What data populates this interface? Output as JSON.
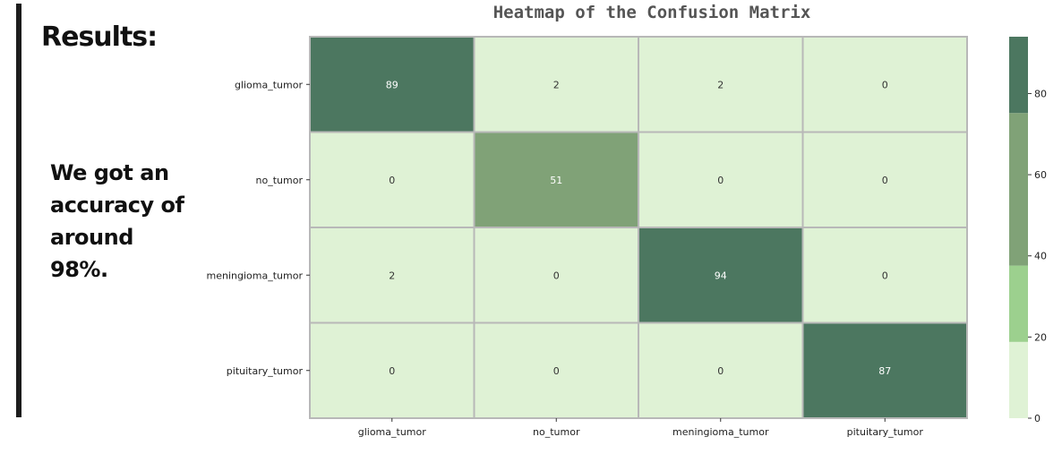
{
  "slide": {
    "heading": "Results:",
    "body": "We got an accuracy of around 98%."
  },
  "colors": {
    "scale": [
      "#dff2d5",
      "#9cd08e",
      "#80a277",
      "#4c7760"
    ],
    "grid": "#b8b8b8",
    "text_light": "#ffffff",
    "text_dark": "#333333"
  },
  "chart_data": {
    "type": "heatmap",
    "title": "Heatmap of the Confusion Matrix",
    "xlabel": "",
    "ylabel": "",
    "row_labels": [
      "glioma_tumor",
      "no_tumor",
      "meningioma_tumor",
      "pituitary_tumor"
    ],
    "col_labels": [
      "glioma_tumor",
      "no_tumor",
      "meningioma_tumor",
      "pituitary_tumor"
    ],
    "values": [
      [
        89,
        2,
        2,
        0
      ],
      [
        0,
        51,
        0,
        0
      ],
      [
        2,
        0,
        94,
        0
      ],
      [
        0,
        0,
        0,
        87
      ]
    ],
    "colorbar": {
      "min": 0,
      "max": 94,
      "ticks": [
        0,
        20,
        40,
        60,
        80
      ],
      "bands": [
        {
          "from": 0,
          "to": 18.8,
          "color": "#dff2d5"
        },
        {
          "from": 18.8,
          "to": 37.6,
          "color": "#9cd08e"
        },
        {
          "from": 37.6,
          "to": 75.2,
          "color": "#80a277"
        },
        {
          "from": 75.2,
          "to": 94,
          "color": "#4c7760"
        }
      ]
    }
  }
}
